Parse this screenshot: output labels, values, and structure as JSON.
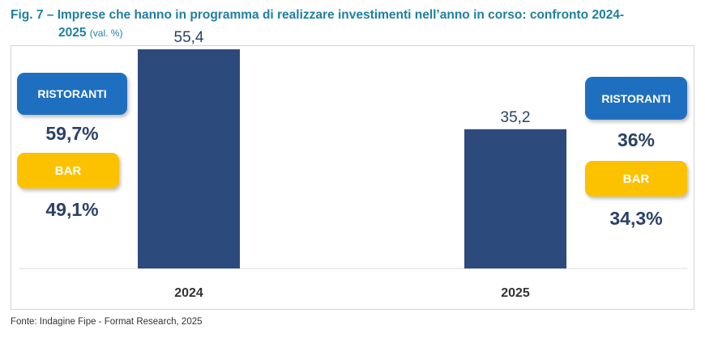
{
  "title": {
    "line1": "Fig. 7 – Imprese che hanno in programma di realizzare investimenti nell’anno in corso: confronto 2024-",
    "line2": "2025",
    "unit": "(val. %)"
  },
  "chart_data": {
    "type": "bar",
    "categories": [
      "2024",
      "2025"
    ],
    "values": [
      55.4,
      35.2
    ],
    "value_labels": [
      "55,4",
      "35,2"
    ],
    "ylim": [
      0,
      65
    ],
    "grid": false,
    "bar_color": "#2d4a7c"
  },
  "breakdown": {
    "y2024": {
      "ristoranti_label": "RISTORANTI",
      "ristoranti_value": "59,7%",
      "bar_label": "BAR",
      "bar_value": "49,1%"
    },
    "y2025": {
      "ristoranti_label": "RISTORANTI",
      "ristoranti_value": "36%",
      "bar_label": "BAR",
      "bar_value": "34,3%"
    }
  },
  "colors": {
    "ristoranti": "#1f6fc0",
    "bar": "#fcc200",
    "title": "#1f7fa0",
    "text_dark": "#2b4167"
  },
  "source": "Fonte: Indagine Fipe - Format Research, 2025"
}
